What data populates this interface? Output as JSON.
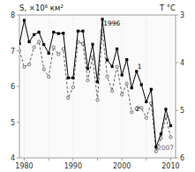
{
  "chart_data": {
    "type": "line",
    "ylabel": "S, ×10⁶ км²",
    "y2label": "T °C",
    "x": [
      1979,
      1980,
      1981,
      1982,
      1983,
      1984,
      1985,
      1986,
      1987,
      1988,
      1989,
      1990,
      1991,
      1992,
      1993,
      1994,
      1995,
      1996,
      1997,
      1998,
      1999,
      2000,
      2001,
      2002,
      2003,
      2004,
      2005,
      2006,
      2007,
      2008,
      2009,
      2010
    ],
    "series": [
      {
        "color": "#000000",
        "marker": "square",
        "line_style": "solid",
        "values": [
          7.2,
          7.85,
          7.25,
          7.45,
          7.52,
          7.17,
          6.93,
          7.52,
          7.48,
          7.49,
          6.24,
          6.24,
          7.55,
          7.55,
          6.5,
          7.18,
          6.13,
          7.88,
          6.74,
          6.56,
          7.05,
          6.32,
          6.75,
          5.96,
          6.42,
          6.05,
          5.57,
          5.92,
          4.3,
          4.67,
          5.36,
          4.9
        ]
      },
      {
        "color": "#666666",
        "marker": "circle",
        "line_style": "dashed",
        "values": [
          7.0,
          6.55,
          6.62,
          7.1,
          7.25,
          6.48,
          6.27,
          7.1,
          6.9,
          7.05,
          5.68,
          5.98,
          7.25,
          7.2,
          6.17,
          6.82,
          5.62,
          7.55,
          6.28,
          5.88,
          6.55,
          5.77,
          6.08,
          5.28,
          5.38,
          5.4,
          5.12,
          5.53,
          4.18,
          4.55,
          5.15,
          4.58
        ]
      }
    ],
    "xlim": [
      1979,
      2011
    ],
    "xticks": [
      1980,
      {
        "value": 1985,
        "label": null
      },
      1990,
      {
        "value": 1995,
        "label": null
      },
      2000,
      {
        "value": 2005,
        "label": null
      },
      2010
    ],
    "ylim": [
      4,
      8
    ],
    "yticks": [
      4,
      5,
      6,
      7,
      8
    ],
    "y2lim": [
      6,
      3
    ],
    "y2ticks": [
      3,
      4,
      5,
      6
    ],
    "grid": "x",
    "annotations": [
      {
        "text": "1996",
        "x": 1996.2,
        "y": 7.85,
        "color": "#000000"
      },
      {
        "text": "2007",
        "x": 2007.2,
        "y": 4.35,
        "color": "#666666"
      },
      {
        "text": "1",
        "x": 2003.2,
        "y": 6.55,
        "color": "#000000"
      },
      {
        "text": "2",
        "x": 2002.8,
        "y": 5.35,
        "color": "#000000"
      }
    ]
  }
}
